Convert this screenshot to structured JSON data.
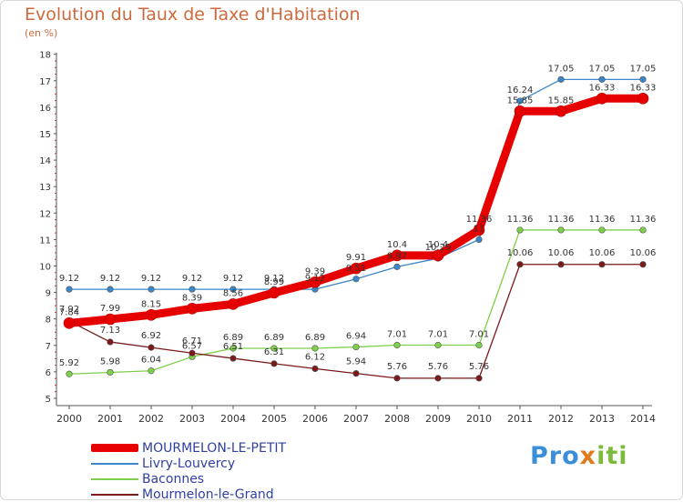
{
  "title": "Evolution du Taux de Taxe d'Habitation",
  "unit_label": "(en %)",
  "logo": {
    "part1": "Pro",
    "part2": "x",
    "part3": "iti"
  },
  "chart_data": {
    "type": "line",
    "title": "Evolution du Taux de Taxe d'Habitation",
    "ylabel": "(en %)",
    "xlabel": "",
    "x": [
      "2000",
      "2001",
      "2002",
      "2003",
      "2004",
      "2005",
      "2006",
      "2007",
      "2008",
      "2009",
      "2010",
      "2011",
      "2012",
      "2013",
      "2014"
    ],
    "ylim": [
      5,
      18
    ],
    "yticks": [
      "5",
      "6",
      "7",
      "8",
      "9",
      "10",
      "11",
      "12",
      "13",
      "14",
      "15",
      "16",
      "17",
      "18"
    ],
    "grid": false,
    "legend_position": "bottom-left",
    "series": [
      {
        "name": "MOURMELON-LE-PETIT",
        "color": "#e60000",
        "values": [
          7.84,
          7.99,
          8.15,
          8.39,
          8.56,
          8.99,
          9.39,
          9.91,
          10.4,
          10.4,
          11.36,
          15.85,
          15.85,
          16.33,
          16.33
        ],
        "labels": [
          "7.84",
          "7.99",
          "8.15",
          "8.39",
          "8.56",
          "8.99",
          "9.39",
          "9.91",
          "10.4",
          "10.4",
          "11.36",
          "15.85",
          "15.85",
          "16.33",
          "16.33"
        ]
      },
      {
        "name": "Livry-Louvercy",
        "color": "#3a86c8",
        "values": [
          9.12,
          9.12,
          9.12,
          9.12,
          9.12,
          9.12,
          9.12,
          9.51,
          9.97,
          10.29,
          11.0,
          16.24,
          17.05,
          17.05,
          17.05
        ],
        "labels": [
          "9.12",
          "9.12",
          "9.12",
          "9.12",
          "9.12",
          "9.12",
          "9.12",
          "9.51",
          "9.97",
          "10.29",
          "11",
          "16.24",
          "17.05",
          "17.05",
          "17.05"
        ]
      },
      {
        "name": "Baconnes",
        "color": "#7ed04a",
        "values": [
          5.92,
          5.98,
          6.04,
          6.57,
          6.89,
          6.89,
          6.89,
          6.94,
          7.01,
          7.01,
          7.01,
          11.36,
          11.36,
          11.36,
          11.36
        ],
        "labels": [
          "5.92",
          "5.98",
          "6.04",
          "6.57",
          "6.89",
          "6.89",
          "6.89",
          "6.94",
          "7.01",
          "7.01",
          "7.01",
          "11.36",
          "11.36",
          "11.36",
          "11.36"
        ]
      },
      {
        "name": "Mourmelon-le-Grand",
        "color": "#7a1a1a",
        "values": [
          7.92,
          7.13,
          6.92,
          6.71,
          6.51,
          6.31,
          6.12,
          5.94,
          5.76,
          5.76,
          5.76,
          10.06,
          10.06,
          10.06,
          10.06
        ],
        "labels": [
          "7.92",
          "7.13",
          "6.92",
          "6.71",
          "6.51",
          "6.31",
          "6.12",
          "5.94",
          "5.76",
          "5.76",
          "5.76",
          "10.06",
          "10.06",
          "10.06",
          "10.06"
        ]
      }
    ]
  }
}
